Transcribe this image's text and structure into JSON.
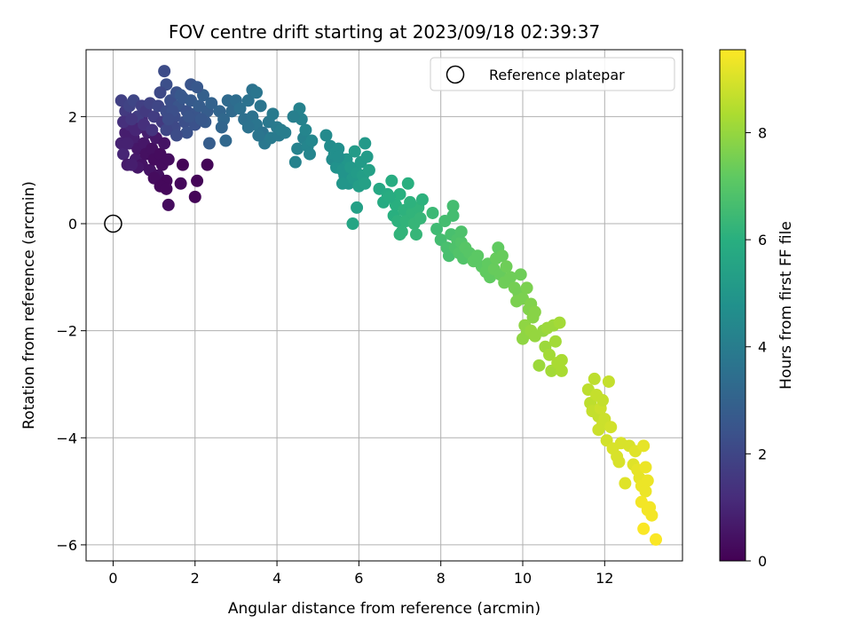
{
  "chart_data": {
    "type": "scatter",
    "title": "FOV centre drift starting at 2023/09/18 02:39:37",
    "xlabel": "Angular distance from reference (arcmin)",
    "ylabel": "Rotation from reference (arcmin)",
    "colorbar_label": "Hours from first FF file",
    "xlim": [
      -0.66,
      13.9
    ],
    "ylim": [
      -6.3,
      3.25
    ],
    "clim": [
      0,
      9.55
    ],
    "colormap": "viridis",
    "grid": true,
    "legend_position": "top-right",
    "xticks": [
      0,
      2,
      4,
      6,
      8,
      10,
      12
    ],
    "yticks": [
      -6,
      -4,
      -2,
      0,
      2
    ],
    "cticks": [
      0,
      2,
      4,
      6,
      8
    ],
    "reference_point": {
      "label": "Reference platepar",
      "x": 0,
      "y": 0
    },
    "points": [
      [
        0.2,
        1.5,
        0.9
      ],
      [
        0.3,
        1.7,
        0.8
      ],
      [
        0.25,
        1.3,
        1.0
      ],
      [
        0.35,
        1.1,
        0.7
      ],
      [
        0.4,
        1.5,
        0.6
      ],
      [
        0.45,
        1.9,
        1.2
      ],
      [
        0.5,
        1.6,
        0.8
      ],
      [
        0.55,
        1.2,
        0.7
      ],
      [
        0.6,
        1.4,
        0.6
      ],
      [
        0.65,
        1.8,
        0.9
      ],
      [
        0.7,
        1.1,
        0.5
      ],
      [
        0.75,
        1.5,
        0.6
      ],
      [
        0.8,
        1.3,
        0.4
      ],
      [
        0.85,
        1.7,
        0.8
      ],
      [
        0.9,
        1.0,
        0.5
      ],
      [
        0.95,
        1.4,
        0.4
      ],
      [
        1.0,
        1.2,
        0.3
      ],
      [
        1.05,
        1.6,
        0.6
      ],
      [
        1.1,
        0.9,
        0.4
      ],
      [
        1.15,
        1.3,
        0.3
      ],
      [
        1.2,
        1.1,
        0.3
      ],
      [
        1.25,
        1.5,
        0.5
      ],
      [
        1.3,
        0.8,
        0.2
      ],
      [
        1.35,
        1.2,
        0.3
      ],
      [
        1.0,
        0.85,
        0.3
      ],
      [
        1.15,
        0.7,
        0.2
      ],
      [
        1.3,
        0.65,
        0.2
      ],
      [
        0.6,
        1.05,
        0.6
      ],
      [
        0.45,
        1.1,
        0.8
      ],
      [
        0.35,
        1.5,
        0.9
      ],
      [
        0.4,
        1.85,
        1.0
      ],
      [
        0.7,
        1.95,
        1.1
      ],
      [
        0.55,
        1.75,
        1.0
      ],
      [
        1.7,
        1.1,
        0.1
      ],
      [
        1.65,
        0.75,
        0.2
      ],
      [
        2.05,
        0.8,
        0.1
      ],
      [
        2.0,
        0.5,
        0.1
      ],
      [
        2.3,
        1.1,
        0.1
      ],
      [
        1.35,
        0.35,
        0.3
      ],
      [
        0.2,
        2.3,
        1.8
      ],
      [
        0.3,
        2.1,
        1.6
      ],
      [
        0.4,
        2.2,
        1.9
      ],
      [
        0.5,
        2.3,
        2.0
      ],
      [
        0.6,
        2.0,
        1.7
      ],
      [
        0.7,
        2.2,
        1.8
      ],
      [
        0.8,
        2.1,
        1.6
      ],
      [
        0.9,
        2.25,
        1.9
      ],
      [
        1.0,
        2.0,
        1.7
      ],
      [
        1.1,
        2.2,
        2.0
      ],
      [
        0.25,
        1.9,
        1.3
      ],
      [
        0.45,
        1.95,
        1.5
      ],
      [
        0.75,
        1.85,
        1.3
      ],
      [
        0.95,
        1.75,
        1.4
      ],
      [
        1.2,
        1.9,
        1.6
      ],
      [
        1.3,
        2.1,
        2.2
      ],
      [
        1.4,
        2.3,
        2.3
      ],
      [
        1.5,
        2.0,
        2.2
      ],
      [
        1.6,
        2.2,
        2.5
      ],
      [
        1.7,
        2.35,
        2.6
      ],
      [
        1.8,
        2.1,
        2.4
      ],
      [
        1.9,
        2.3,
        2.7
      ],
      [
        2.0,
        2.05,
        2.5
      ],
      [
        2.1,
        2.2,
        2.8
      ],
      [
        2.2,
        2.4,
        2.9
      ],
      [
        2.3,
        2.1,
        2.8
      ],
      [
        2.4,
        2.25,
        3.0
      ],
      [
        1.5,
        1.8,
        2.1
      ],
      [
        1.75,
        1.9,
        2.3
      ],
      [
        2.0,
        1.85,
        2.4
      ],
      [
        1.3,
        1.75,
        2.0
      ],
      [
        1.55,
        2.45,
        2.4
      ],
      [
        1.25,
        2.85,
        2.2
      ],
      [
        1.3,
        2.6,
        2.3
      ],
      [
        1.9,
        2.6,
        2.5
      ],
      [
        2.05,
        2.55,
        2.6
      ],
      [
        2.25,
        1.9,
        2.7
      ],
      [
        1.8,
        1.7,
        2.4
      ],
      [
        2.35,
        1.5,
        2.8
      ],
      [
        1.15,
        2.45,
        2.1
      ],
      [
        1.65,
        2.4,
        2.6
      ],
      [
        1.45,
        2.1,
        2.3
      ],
      [
        1.35,
        1.95,
        2.2
      ],
      [
        1.85,
        2.0,
        2.5
      ],
      [
        2.15,
        1.95,
        2.6
      ],
      [
        1.55,
        1.65,
        2.2
      ],
      [
        2.6,
        2.1,
        3.1
      ],
      [
        2.7,
        1.95,
        3.2
      ],
      [
        2.8,
        2.3,
        3.3
      ],
      [
        2.65,
        1.8,
        3.1
      ],
      [
        2.9,
        2.1,
        3.3
      ],
      [
        3.0,
        2.3,
        3.4
      ],
      [
        3.1,
        2.15,
        3.5
      ],
      [
        3.2,
        1.95,
        3.5
      ],
      [
        3.3,
        2.3,
        3.6
      ],
      [
        3.4,
        2.0,
        3.6
      ],
      [
        3.5,
        1.85,
        3.7
      ],
      [
        3.6,
        2.2,
        3.7
      ],
      [
        3.65,
        1.7,
        3.6
      ],
      [
        3.7,
        1.5,
        3.8
      ],
      [
        3.4,
        2.5,
        3.6
      ],
      [
        3.5,
        2.45,
        3.7
      ],
      [
        3.8,
        1.9,
        3.8
      ],
      [
        3.9,
        2.05,
        3.9
      ],
      [
        3.85,
        1.6,
        3.9
      ],
      [
        3.3,
        1.8,
        3.6
      ],
      [
        3.55,
        1.65,
        3.7
      ],
      [
        2.75,
        1.55,
        3.2
      ],
      [
        4.0,
        1.8,
        3.9
      ],
      [
        4.05,
        1.65,
        3.9
      ],
      [
        4.1,
        1.75,
        4.0
      ],
      [
        4.2,
        1.7,
        4.0
      ],
      [
        4.45,
        1.15,
        4.2
      ],
      [
        4.5,
        1.4,
        4.2
      ],
      [
        4.6,
        1.95,
        4.2
      ],
      [
        4.65,
        1.6,
        4.2
      ],
      [
        4.7,
        1.75,
        4.3
      ],
      [
        4.75,
        1.45,
        4.3
      ],
      [
        4.8,
        1.3,
        4.3
      ],
      [
        4.85,
        1.55,
        4.4
      ],
      [
        4.55,
        2.15,
        4.2
      ],
      [
        4.4,
        2.0,
        4.1
      ],
      [
        5.2,
        1.65,
        4.5
      ],
      [
        5.3,
        1.45,
        4.6
      ],
      [
        5.35,
        1.2,
        4.6
      ],
      [
        5.4,
        1.3,
        4.7
      ],
      [
        5.45,
        1.05,
        4.8
      ],
      [
        5.5,
        1.4,
        4.7
      ],
      [
        5.55,
        1.15,
        4.8
      ],
      [
        5.6,
        1.0,
        4.9
      ],
      [
        5.65,
        0.9,
        4.9
      ],
      [
        5.7,
        1.2,
        5.0
      ],
      [
        5.75,
        0.75,
        5.0
      ],
      [
        5.8,
        1.05,
        5.1
      ],
      [
        5.85,
        0.85,
        5.1
      ],
      [
        5.9,
        1.35,
        5.2
      ],
      [
        5.95,
        0.95,
        5.2
      ],
      [
        6.0,
        0.7,
        5.3
      ],
      [
        6.05,
        1.15,
        5.2
      ],
      [
        6.1,
        0.9,
        5.3
      ],
      [
        6.15,
        0.75,
        5.4
      ],
      [
        6.2,
        1.25,
        5.2
      ],
      [
        6.25,
        1.0,
        5.4
      ],
      [
        5.95,
        0.3,
        5.4
      ],
      [
        5.85,
        -0.0,
        5.6
      ],
      [
        6.15,
        1.5,
        5.1
      ],
      [
        5.6,
        0.75,
        5.0
      ],
      [
        5.5,
        1.25,
        4.7
      ],
      [
        6.5,
        0.65,
        5.7
      ],
      [
        6.6,
        0.4,
        5.8
      ],
      [
        6.7,
        0.55,
        5.8
      ],
      [
        6.8,
        0.8,
        5.9
      ],
      [
        6.85,
        0.15,
        6.0
      ],
      [
        6.9,
        0.35,
        6.0
      ],
      [
        6.95,
        0.05,
        6.1
      ],
      [
        7.0,
        0.55,
        6.0
      ],
      [
        7.05,
        -0.15,
        6.2
      ],
      [
        7.1,
        0.25,
        6.1
      ],
      [
        7.15,
        0.05,
        6.2
      ],
      [
        7.2,
        0.75,
        6.0
      ],
      [
        7.3,
        0.2,
        6.2
      ],
      [
        7.35,
        0.0,
        6.3
      ],
      [
        7.4,
        -0.2,
        6.3
      ],
      [
        7.45,
        0.3,
        6.2
      ],
      [
        7.5,
        0.1,
        6.3
      ],
      [
        7.55,
        0.45,
        6.1
      ],
      [
        7.0,
        -0.2,
        6.2
      ],
      [
        6.75,
        0.5,
        5.9
      ],
      [
        7.25,
        0.4,
        6.1
      ],
      [
        7.8,
        0.2,
        6.4
      ],
      [
        7.9,
        -0.1,
        6.5
      ],
      [
        8.0,
        -0.3,
        6.6
      ],
      [
        8.1,
        0.05,
        6.6
      ],
      [
        8.15,
        -0.45,
        6.7
      ],
      [
        8.2,
        -0.6,
        6.7
      ],
      [
        8.25,
        -0.2,
        6.7
      ],
      [
        8.3,
        0.15,
        6.6
      ],
      [
        8.35,
        -0.45,
        6.8
      ],
      [
        8.4,
        -0.3,
        6.8
      ],
      [
        8.45,
        -0.55,
        6.9
      ],
      [
        8.5,
        -0.35,
        6.9
      ],
      [
        8.55,
        -0.65,
        6.9
      ],
      [
        8.6,
        -0.45,
        7.0
      ],
      [
        8.7,
        -0.55,
        7.0
      ],
      [
        8.8,
        -0.7,
        7.1
      ],
      [
        8.9,
        -0.6,
        7.1
      ],
      [
        8.3,
        0.33,
        6.6
      ],
      [
        8.5,
        -0.15,
        6.8
      ],
      [
        9.0,
        -0.8,
        7.1
      ],
      [
        9.1,
        -0.9,
        7.2
      ],
      [
        9.15,
        -0.75,
        7.2
      ],
      [
        9.2,
        -1.0,
        7.2
      ],
      [
        9.3,
        -0.85,
        7.3
      ],
      [
        9.35,
        -0.65,
        7.3
      ],
      [
        9.4,
        -0.45,
        7.2
      ],
      [
        9.45,
        -0.95,
        7.3
      ],
      [
        9.5,
        -0.6,
        7.3
      ],
      [
        9.55,
        -1.1,
        7.4
      ],
      [
        9.6,
        -0.8,
        7.4
      ],
      [
        9.7,
        -1.0,
        7.4
      ],
      [
        9.8,
        -1.2,
        7.5
      ],
      [
        9.9,
        -1.3,
        7.5
      ],
      [
        9.95,
        -0.95,
        7.4
      ],
      [
        10.0,
        -1.4,
        7.6
      ],
      [
        10.1,
        -1.2,
        7.6
      ],
      [
        10.15,
        -1.6,
        7.7
      ],
      [
        10.2,
        -1.5,
        7.7
      ],
      [
        10.25,
        -1.75,
        7.8
      ],
      [
        10.3,
        -1.65,
        7.8
      ],
      [
        9.85,
        -1.45,
        7.6
      ],
      [
        10.0,
        -2.15,
        7.9
      ],
      [
        10.05,
        -1.9,
        7.9
      ],
      [
        10.1,
        -2.05,
        7.9
      ],
      [
        10.2,
        -2.0,
        8.0
      ],
      [
        10.3,
        -2.1,
        8.0
      ],
      [
        10.4,
        -2.65,
        8.1
      ],
      [
        10.5,
        -2.0,
        8.0
      ],
      [
        10.55,
        -2.3,
        8.1
      ],
      [
        10.6,
        -1.95,
        8.1
      ],
      [
        10.65,
        -2.45,
        8.2
      ],
      [
        10.7,
        -2.75,
        8.2
      ],
      [
        10.75,
        -1.9,
        8.1
      ],
      [
        10.8,
        -2.2,
        8.2
      ],
      [
        10.85,
        -2.6,
        8.3
      ],
      [
        10.9,
        -1.85,
        8.2
      ],
      [
        10.95,
        -2.75,
        8.3
      ],
      [
        10.95,
        -2.55,
        8.3
      ],
      [
        11.6,
        -3.1,
        8.6
      ],
      [
        11.65,
        -3.35,
        8.6
      ],
      [
        11.7,
        -3.5,
        8.7
      ],
      [
        11.75,
        -2.9,
        8.6
      ],
      [
        11.8,
        -3.2,
        8.7
      ],
      [
        11.85,
        -3.6,
        8.7
      ],
      [
        11.9,
        -3.45,
        8.8
      ],
      [
        11.95,
        -3.75,
        8.8
      ],
      [
        11.95,
        -3.3,
        8.7
      ],
      [
        12.0,
        -3.65,
        8.8
      ],
      [
        12.05,
        -4.05,
        8.9
      ],
      [
        12.1,
        -2.95,
        8.7
      ],
      [
        12.15,
        -3.8,
        8.9
      ],
      [
        12.2,
        -4.2,
        9.0
      ],
      [
        12.3,
        -4.35,
        9.0
      ],
      [
        12.4,
        -4.1,
        9.0
      ],
      [
        12.5,
        -4.85,
        9.1
      ],
      [
        12.6,
        -4.15,
        9.0
      ],
      [
        12.7,
        -4.5,
        9.1
      ],
      [
        12.75,
        -4.25,
        9.1
      ],
      [
        11.85,
        -3.85,
        8.8
      ],
      [
        12.35,
        -4.45,
        9.0
      ],
      [
        12.8,
        -4.6,
        9.2
      ],
      [
        12.85,
        -4.75,
        9.2
      ],
      [
        12.9,
        -4.9,
        9.3
      ],
      [
        12.95,
        -4.15,
        9.2
      ],
      [
        13.0,
        -5.0,
        9.3
      ],
      [
        13.05,
        -4.8,
        9.3
      ],
      [
        13.1,
        -5.3,
        9.4
      ],
      [
        12.9,
        -5.2,
        9.4
      ],
      [
        13.15,
        -5.45,
        9.4
      ],
      [
        13.0,
        -4.55,
        9.3
      ],
      [
        13.25,
        -5.9,
        9.5
      ],
      [
        12.95,
        -5.7,
        9.5
      ],
      [
        13.05,
        -5.35,
        9.4
      ]
    ]
  }
}
